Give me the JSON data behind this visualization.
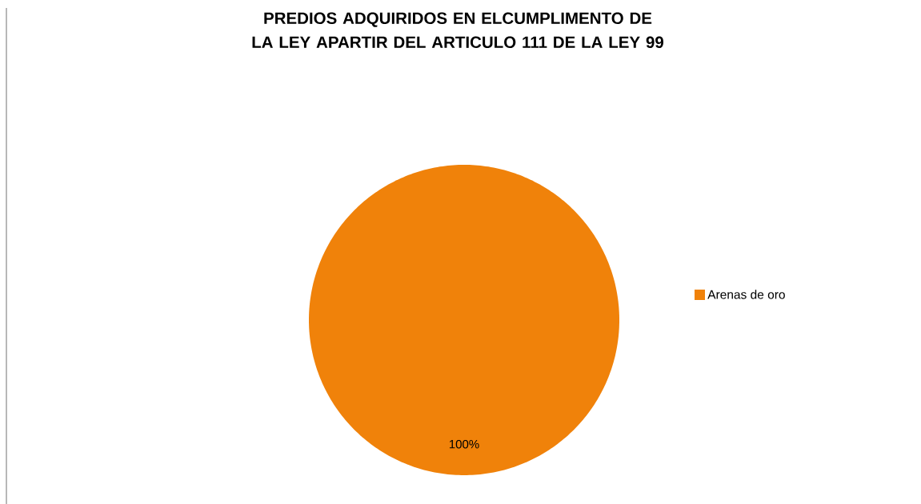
{
  "chart_data": {
    "type": "pie",
    "title": "PREDIOS ADQUIRIDOS EN ELCUMPLIMENTO DE LA LEY APARTIR DEL ARTICULO 111 DE LA LEY 99",
    "categories": [
      "Arenas de oro"
    ],
    "values": [
      100
    ],
    "colors": [
      "#f0820a"
    ],
    "value_labels": [
      "100%"
    ],
    "legend": "right"
  }
}
